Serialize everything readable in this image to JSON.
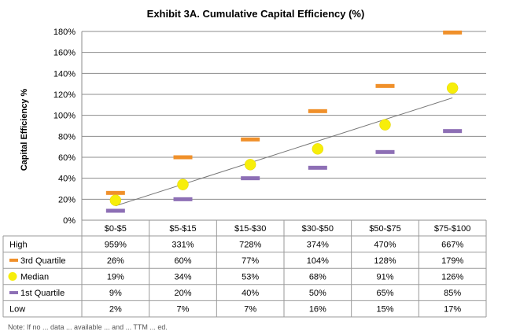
{
  "chart_data": {
    "type": "scatter",
    "title": "Exhibit 3A. Cumulative Capital Efficiency (%)",
    "ylabel": "Capital Efficiency %",
    "xlabel": "",
    "ylim": [
      0,
      180
    ],
    "yticks": [
      "0%",
      "20%",
      "40%",
      "60%",
      "80%",
      "100%",
      "120%",
      "140%",
      "160%",
      "180%"
    ],
    "categories": [
      "$0-$5",
      "$5-$15",
      "$15-$30",
      "$30-$50",
      "$50-$75",
      "$75-$100"
    ],
    "grid": true,
    "series": [
      {
        "name": "High",
        "marker": "none",
        "values": [
          959,
          331,
          728,
          374,
          470,
          667
        ],
        "labels": [
          "959%",
          "331%",
          "728%",
          "374%",
          "470%",
          "667%"
        ]
      },
      {
        "name": "3rd Quartile",
        "marker": "dash",
        "color": "#f0902a",
        "values": [
          26,
          60,
          77,
          104,
          128,
          179
        ],
        "labels": [
          "26%",
          "60%",
          "77%",
          "104%",
          "128%",
          "179%"
        ]
      },
      {
        "name": "Median",
        "marker": "circle",
        "color": "#f7ee0a",
        "values": [
          19,
          34,
          53,
          68,
          91,
          126
        ],
        "labels": [
          "19%",
          "34%",
          "53%",
          "68%",
          "91%",
          "126%"
        ]
      },
      {
        "name": "1st Quartile",
        "marker": "dash",
        "color": "#8d6fb5",
        "values": [
          9,
          20,
          40,
          50,
          65,
          85
        ],
        "labels": [
          "9%",
          "20%",
          "40%",
          "50%",
          "65%",
          "85%"
        ]
      },
      {
        "name": "Low",
        "marker": "none",
        "values": [
          2,
          7,
          7,
          16,
          15,
          17
        ],
        "labels": [
          "2%",
          "7%",
          "7%",
          "16%",
          "15%",
          "17%"
        ]
      }
    ],
    "trendline": {
      "series": "Median",
      "type": "linear",
      "color": "#777777"
    }
  },
  "footnote": "Note: If no ... data ... available ... and ... TTM ... ed."
}
